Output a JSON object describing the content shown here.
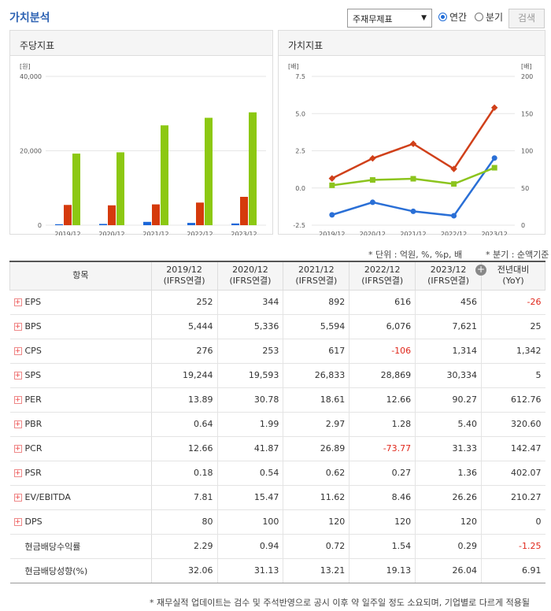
{
  "header": {
    "title": "가치분석",
    "select": "주재무제표",
    "radio_annual": "연간",
    "radio_quarter": "분기",
    "search": "검색"
  },
  "panels": {
    "left_title": "주당지표",
    "right_title": "가치지표"
  },
  "unit_note": "* 단위 : 억원, %, %p, 배",
  "quarter_note": "* 분기 : 순액기준",
  "colors": {
    "eps": "#1a66d8",
    "bps": "#d53a0c",
    "sps": "#8cc812",
    "per": "#2a6fd6",
    "pbr": "#d0401a",
    "psr": "#8cc41e",
    "negative": "#e0281c"
  },
  "chart_data": [
    {
      "type": "bar",
      "unit": "[원]",
      "categories": [
        "2019/12",
        "2020/12",
        "2021/12",
        "2022/12",
        "2023/12"
      ],
      "ylim": [
        0,
        40000
      ],
      "yticks": [
        "40,000",
        "20,000",
        "0"
      ],
      "series": [
        {
          "name": "EPS",
          "values": [
            252,
            344,
            892,
            616,
            456
          ]
        },
        {
          "name": "BPS",
          "values": [
            5444,
            5336,
            5594,
            6076,
            7621
          ]
        },
        {
          "name": "SPS",
          "values": [
            19244,
            19593,
            26833,
            28869,
            30334
          ]
        }
      ],
      "legend": "bottom"
    },
    {
      "type": "line",
      "unit_left": "[배]",
      "unit_right": "[배]",
      "categories": [
        "2019/12",
        "2020/12",
        "2021/12",
        "2022/12",
        "2023/12"
      ],
      "ylim_left": [
        -2.5,
        7.5
      ],
      "ylim_right": [
        0,
        200
      ],
      "yticks_left": [
        "7.5",
        "5.0",
        "2.5",
        "0.0",
        "-2.5"
      ],
      "yticks_right": [
        "200",
        "150",
        "100",
        "50",
        "0"
      ],
      "series": [
        {
          "name": "PER",
          "axis": "right",
          "values": [
            13.89,
            30.78,
            18.61,
            12.66,
            90.27
          ]
        },
        {
          "name": "PBR(좌)",
          "axis": "left",
          "values": [
            0.64,
            1.99,
            2.97,
            1.28,
            5.4
          ]
        },
        {
          "name": "PSR(좌)",
          "axis": "left",
          "values": [
            0.18,
            0.54,
            0.62,
            0.27,
            1.36
          ]
        }
      ],
      "legend": "bottom"
    }
  ],
  "table": {
    "headers": [
      {
        "l1": "항목",
        "l2": ""
      },
      {
        "l1": "2019/12",
        "l2": "(IFRS연결)"
      },
      {
        "l1": "2020/12",
        "l2": "(IFRS연결)"
      },
      {
        "l1": "2021/12",
        "l2": "(IFRS연결)"
      },
      {
        "l1": "2022/12",
        "l2": "(IFRS연결)"
      },
      {
        "l1": "2023/12",
        "l2": "(IFRS연결)"
      },
      {
        "l1": "전년대비",
        "l2": "(YoY)"
      }
    ],
    "rows": [
      {
        "label": "EPS",
        "plus": true,
        "vals": [
          "252",
          "344",
          "892",
          "616",
          "456",
          "-26"
        ]
      },
      {
        "label": "BPS",
        "plus": true,
        "vals": [
          "5,444",
          "5,336",
          "5,594",
          "6,076",
          "7,621",
          "25"
        ]
      },
      {
        "label": "CPS",
        "plus": true,
        "vals": [
          "276",
          "253",
          "617",
          "-106",
          "1,314",
          "1,342"
        ]
      },
      {
        "label": "SPS",
        "plus": true,
        "vals": [
          "19,244",
          "19,593",
          "26,833",
          "28,869",
          "30,334",
          "5"
        ]
      },
      {
        "label": "PER",
        "plus": true,
        "vals": [
          "13.89",
          "30.78",
          "18.61",
          "12.66",
          "90.27",
          "612.76"
        ]
      },
      {
        "label": "PBR",
        "plus": true,
        "vals": [
          "0.64",
          "1.99",
          "2.97",
          "1.28",
          "5.40",
          "320.60"
        ]
      },
      {
        "label": "PCR",
        "plus": true,
        "vals": [
          "12.66",
          "41.87",
          "26.89",
          "-73.77",
          "31.33",
          "142.47"
        ]
      },
      {
        "label": "PSR",
        "plus": true,
        "vals": [
          "0.18",
          "0.54",
          "0.62",
          "0.27",
          "1.36",
          "402.07"
        ]
      },
      {
        "label": "EV/EBITDA",
        "plus": true,
        "vals": [
          "7.81",
          "15.47",
          "11.62",
          "8.46",
          "26.26",
          "210.27"
        ]
      },
      {
        "label": "DPS",
        "plus": true,
        "vals": [
          "80",
          "100",
          "120",
          "120",
          "120",
          "0"
        ]
      },
      {
        "label": "현금배당수익률",
        "plus": false,
        "vals": [
          "2.29",
          "0.94",
          "0.72",
          "1.54",
          "0.29",
          "-1.25"
        ]
      },
      {
        "label": "현금배당성향(%)",
        "plus": false,
        "vals": [
          "32.06",
          "31.13",
          "13.21",
          "19.13",
          "26.04",
          "6.91"
        ]
      }
    ]
  },
  "footnote": "* 재무실적 업데이트는 검수 및 주석반영으로 공시 이후 약 일주일 정도 소요되며, 기업별로 다르게 적용될"
}
